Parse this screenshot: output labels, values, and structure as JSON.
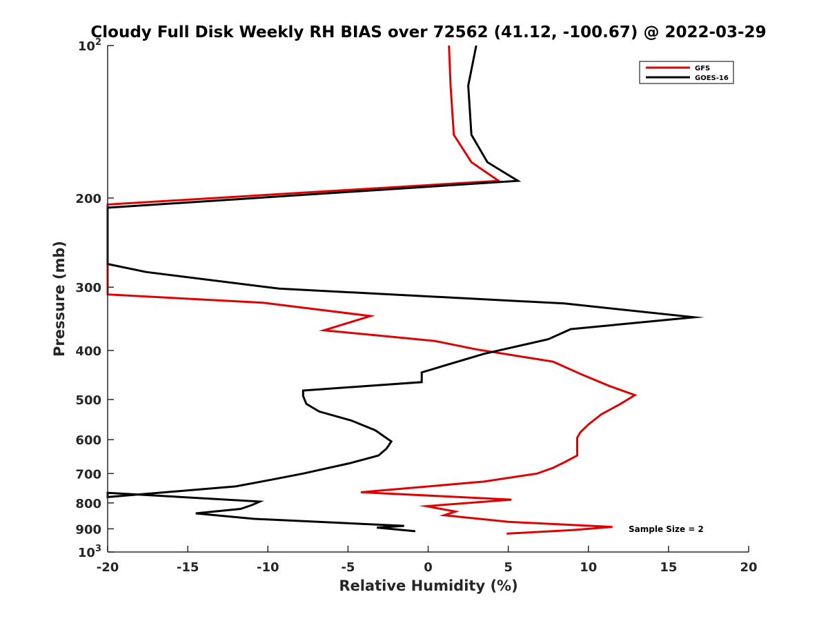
{
  "chart_data": {
    "type": "line",
    "title": "Cloudy Full Disk Weekly RH BIAS over 72562 (41.12, -100.67) @ 2022-03-29",
    "xlabel": "Relative Humidity (%)",
    "ylabel": "Pressure (mb)",
    "xlim": [
      -20,
      20
    ],
    "ylim": [
      100,
      1000
    ],
    "y_scale": "log",
    "y_reversed": true,
    "grid": false,
    "legend_position": "top-right",
    "x_ticks": [
      {
        "value": -20,
        "label": "-20"
      },
      {
        "value": -15,
        "label": "-15"
      },
      {
        "value": -10,
        "label": "-10"
      },
      {
        "value": -5,
        "label": "-5"
      },
      {
        "value": 0,
        "label": "0"
      },
      {
        "value": 5,
        "label": "5"
      },
      {
        "value": 10,
        "label": "10"
      },
      {
        "value": 15,
        "label": "15"
      },
      {
        "value": 20,
        "label": "20"
      }
    ],
    "y_ticks": [
      {
        "value": 100,
        "base": "10",
        "exp": "2"
      },
      {
        "value": 200,
        "base": "200",
        "exp": ""
      },
      {
        "value": 300,
        "base": "300",
        "exp": ""
      },
      {
        "value": 400,
        "base": "400",
        "exp": ""
      },
      {
        "value": 500,
        "base": "500",
        "exp": ""
      },
      {
        "value": 600,
        "base": "600",
        "exp": ""
      },
      {
        "value": 700,
        "base": "700",
        "exp": ""
      },
      {
        "value": 800,
        "base": "800",
        "exp": ""
      },
      {
        "value": 900,
        "base": "900",
        "exp": ""
      },
      {
        "value": 1000,
        "base": "10",
        "exp": "3"
      }
    ],
    "annotation": "Sample Size = 2",
    "series": [
      {
        "name": "GFS",
        "color": "#e00000",
        "points": [
          [
            1.3,
            100
          ],
          [
            1.4,
            120
          ],
          [
            1.6,
            150
          ],
          [
            2.7,
            170
          ],
          [
            4.4,
            185
          ],
          [
            -20,
            206
          ],
          [
            -20,
            310
          ],
          [
            -10.3,
            322
          ],
          [
            -3.6,
            342
          ],
          [
            -6.5,
            365
          ],
          [
            0.4,
            383
          ],
          [
            3.0,
            398
          ],
          [
            7.8,
            421
          ],
          [
            9.5,
            445
          ],
          [
            11.3,
            470
          ],
          [
            12.9,
            490
          ],
          [
            12.0,
            510
          ],
          [
            10.8,
            535
          ],
          [
            10.0,
            560
          ],
          [
            9.5,
            580
          ],
          [
            9.3,
            595
          ],
          [
            9.3,
            615
          ],
          [
            9.3,
            645
          ],
          [
            8.5,
            665
          ],
          [
            7.8,
            682
          ],
          [
            6.8,
            700
          ],
          [
            3.5,
            726
          ],
          [
            -4.2,
            762
          ],
          [
            5.2,
            788
          ],
          [
            -0.1,
            812
          ],
          [
            1.7,
            832
          ],
          [
            1.0,
            846
          ],
          [
            5.0,
            872
          ],
          [
            11.5,
            892
          ],
          [
            9.0,
            905
          ],
          [
            4.9,
            920
          ]
        ]
      },
      {
        "name": "GOES-16",
        "color": "#000000",
        "points": [
          [
            3.0,
            100
          ],
          [
            2.5,
            120
          ],
          [
            2.7,
            150
          ],
          [
            3.7,
            170
          ],
          [
            5.6,
            185
          ],
          [
            -20,
            209
          ],
          [
            -20,
            270
          ],
          [
            -17.6,
            280
          ],
          [
            -9.3,
            302
          ],
          [
            8.5,
            323
          ],
          [
            16.6,
            344
          ],
          [
            8.9,
            363
          ],
          [
            7.5,
            380
          ],
          [
            3.5,
            406
          ],
          [
            1.5,
            424
          ],
          [
            -0.4,
            442
          ],
          [
            -0.4,
            462
          ],
          [
            -7.8,
            480
          ],
          [
            -7.8,
            492
          ],
          [
            -7.6,
            510
          ],
          [
            -6.8,
            528
          ],
          [
            -4.8,
            550
          ],
          [
            -3.3,
            575
          ],
          [
            -2.3,
            605
          ],
          [
            -2.6,
            625
          ],
          [
            -3.1,
            645
          ],
          [
            -4.9,
            668
          ],
          [
            -7.8,
            700
          ],
          [
            -9.8,
            720
          ],
          [
            -12.0,
            742
          ],
          [
            -20,
            779
          ],
          [
            -20,
            764
          ],
          [
            -10.5,
            795
          ],
          [
            -11.0,
            808
          ],
          [
            -11.7,
            822
          ],
          [
            -14.5,
            839
          ],
          [
            -10.9,
            860
          ],
          [
            -1.5,
            888
          ],
          [
            -3.2,
            895
          ],
          [
            -0.8,
            910
          ]
        ]
      }
    ]
  }
}
